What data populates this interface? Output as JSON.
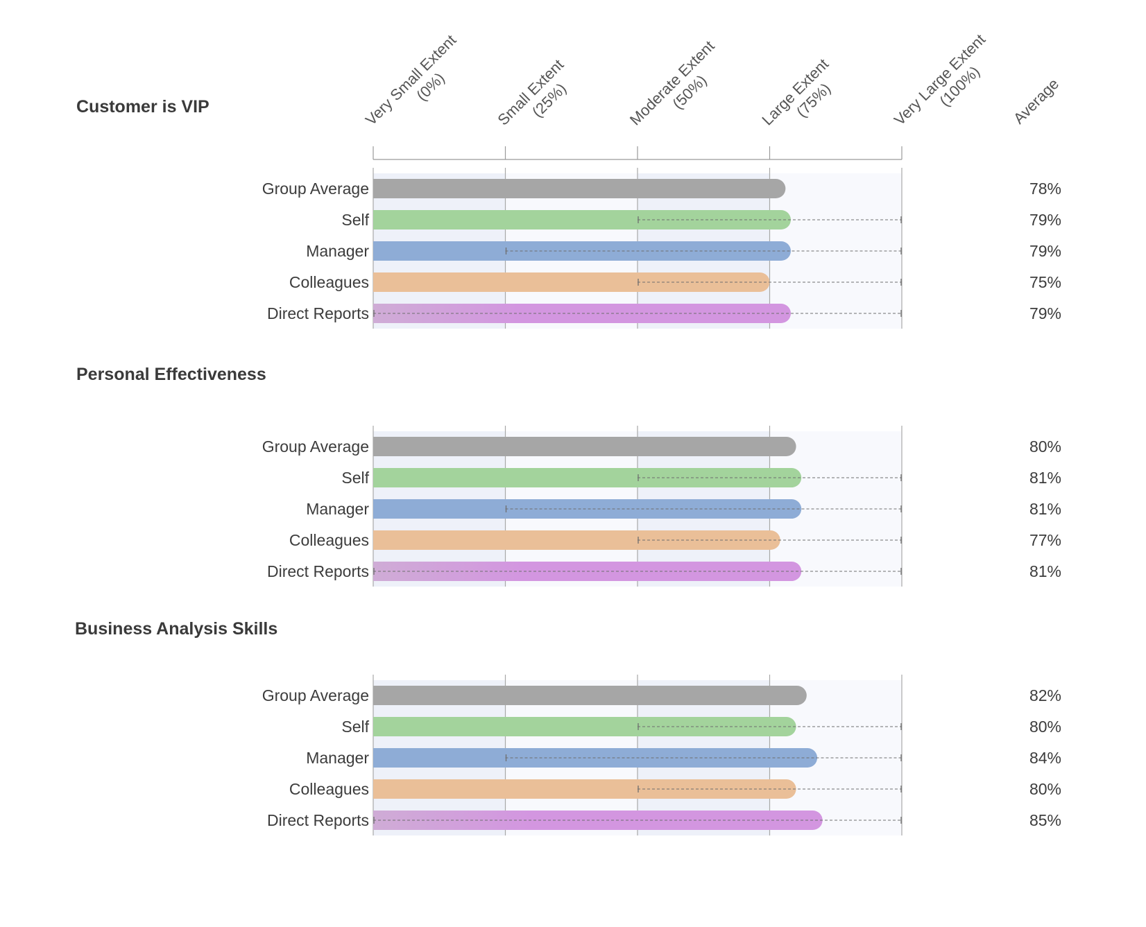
{
  "chart_data": {
    "type": "bar",
    "orientation": "horizontal",
    "scale_headers": [
      {
        "line1": "Very Small Extent",
        "line2": "(0%)"
      },
      {
        "line1": "Small Extent",
        "line2": "(25%)"
      },
      {
        "line1": "Moderate Extent",
        "line2": "(50%)"
      },
      {
        "line1": "Large Extent",
        "line2": "(75%)"
      },
      {
        "line1": "Very Large Extent",
        "line2": "(100%)"
      }
    ],
    "scale_values": [
      0,
      25,
      50,
      75,
      100
    ],
    "average_header": "Average",
    "xlim": [
      0,
      100
    ],
    "unit": "%",
    "colors": {
      "Group Average": "#a6a6a6",
      "Self": "#a3d39c",
      "Manager": "#8eacd6",
      "Colleagues": "#eabf98",
      "Direct Reports": "#d396e0"
    },
    "groups": [
      {
        "title": "Customer is VIP",
        "rows": [
          {
            "label": "Group Average",
            "value": 78,
            "average": "78%"
          },
          {
            "label": "Self",
            "value": 79,
            "average": "79%",
            "range": [
              50,
              100
            ]
          },
          {
            "label": "Manager",
            "value": 79,
            "average": "79%",
            "range": [
              25,
              100
            ]
          },
          {
            "label": "Colleagues",
            "value": 75,
            "average": "75%",
            "range": [
              50,
              100
            ]
          },
          {
            "label": "Direct Reports",
            "value": 79,
            "average": "79%",
            "range": [
              0,
              100
            ]
          }
        ]
      },
      {
        "title": "Personal Effectiveness",
        "rows": [
          {
            "label": "Group Average",
            "value": 80,
            "average": "80%"
          },
          {
            "label": "Self",
            "value": 81,
            "average": "81%",
            "range": [
              50,
              100
            ]
          },
          {
            "label": "Manager",
            "value": 81,
            "average": "81%",
            "range": [
              25,
              100
            ]
          },
          {
            "label": "Colleagues",
            "value": 77,
            "average": "77%",
            "range": [
              50,
              100
            ]
          },
          {
            "label": "Direct Reports",
            "value": 81,
            "average": "81%",
            "range": [
              0,
              100
            ]
          }
        ]
      },
      {
        "title": "Business Analysis Skills",
        "rows": [
          {
            "label": "Group Average",
            "value": 82,
            "average": "82%"
          },
          {
            "label": "Self",
            "value": 80,
            "average": "80%",
            "range": [
              50,
              100
            ]
          },
          {
            "label": "Manager",
            "value": 84,
            "average": "84%",
            "range": [
              25,
              100
            ]
          },
          {
            "label": "Colleagues",
            "value": 80,
            "average": "80%",
            "range": [
              50,
              100
            ]
          },
          {
            "label": "Direct Reports",
            "value": 85,
            "average": "85%",
            "range": [
              0,
              100
            ]
          }
        ]
      }
    ]
  }
}
